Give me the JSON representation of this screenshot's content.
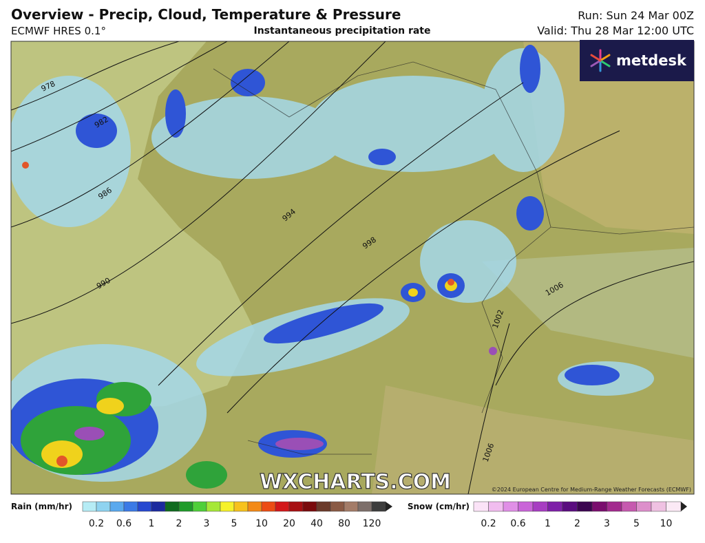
{
  "header": {
    "title": "Overview - Precip, Cloud, Temperature & Pressure",
    "model": "ECMWF HRES 0.1°",
    "subtitle": "Instantaneous precipitation rate",
    "run": "Run: Sun 24 Mar 00Z",
    "valid": "Valid: Thu 28 Mar 12:00 UTC"
  },
  "logo": "metdesk",
  "map": {
    "watermark": "WXCHARTS.COM",
    "copyright": "©2024 European Centre for Medium-Range Weather Forecasts (ECMWF)",
    "isobar_labels": [
      978,
      982,
      986,
      990,
      994,
      998,
      1006,
      1002,
      1006
    ]
  },
  "legend": {
    "rain": {
      "label": "Rain (mm/hr)",
      "ticks": [
        0.2,
        0.6,
        1,
        2,
        3,
        5,
        10,
        20,
        40,
        80,
        120
      ]
    },
    "snow": {
      "label": "Snow (cm/hr)",
      "ticks": [
        0.2,
        0.6,
        1,
        2,
        3,
        5,
        10
      ]
    }
  }
}
